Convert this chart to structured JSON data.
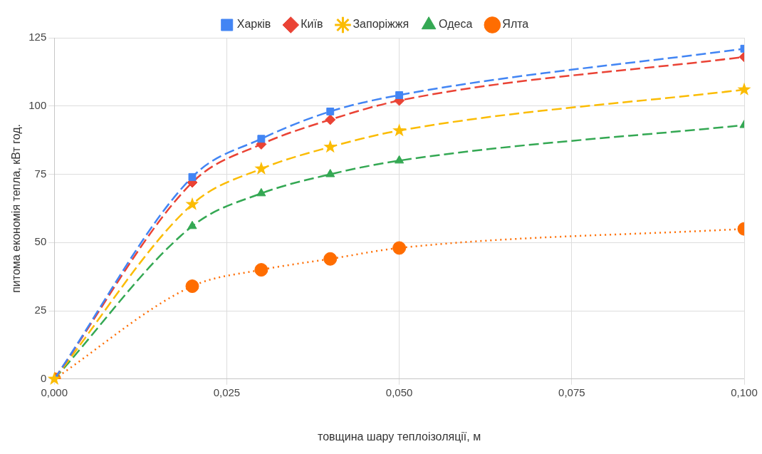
{
  "chart_data": {
    "type": "line",
    "xlabel": "товщина шару теплоізоляції, м",
    "ylabel": "питома економія тепла, кВт год.",
    "x": [
      0,
      0.02,
      0.03,
      0.04,
      0.05,
      0.1
    ],
    "xlim": [
      0,
      0.1
    ],
    "xticks": [
      {
        "value": 0,
        "label": "0,000"
      },
      {
        "value": 0.025,
        "label": "0,025"
      },
      {
        "value": 0.05,
        "label": "0,050"
      },
      {
        "value": 0.075,
        "label": "0,075"
      },
      {
        "value": 0.1,
        "label": "0,100"
      }
    ],
    "ylim": [
      0,
      125
    ],
    "yticks": [
      0,
      25,
      50,
      75,
      100,
      125
    ],
    "grid": true,
    "legend": "top",
    "series": [
      {
        "name": "Харків",
        "color": "#4285f4",
        "marker": "square",
        "line_style": "dashed",
        "values": [
          0,
          74,
          88,
          98,
          104,
          121
        ]
      },
      {
        "name": "Київ",
        "color": "#ea4335",
        "marker": "diamond",
        "line_style": "dashed",
        "values": [
          0,
          72,
          86,
          95,
          102,
          118
        ]
      },
      {
        "name": "Запоріжжя",
        "color": "#fbbc04",
        "marker": "star",
        "line_style": "dashed",
        "values": [
          0,
          64,
          77,
          85,
          91,
          106
        ]
      },
      {
        "name": "Одеса",
        "color": "#34a853",
        "marker": "triangle",
        "line_style": "dashed",
        "values": [
          0,
          56,
          68,
          75,
          80,
          93
        ]
      },
      {
        "name": "Ялта",
        "color": "#ff6d01",
        "marker": "circle",
        "line_style": "dotted",
        "values": [
          0,
          34,
          40,
          44,
          48,
          55
        ]
      }
    ]
  }
}
